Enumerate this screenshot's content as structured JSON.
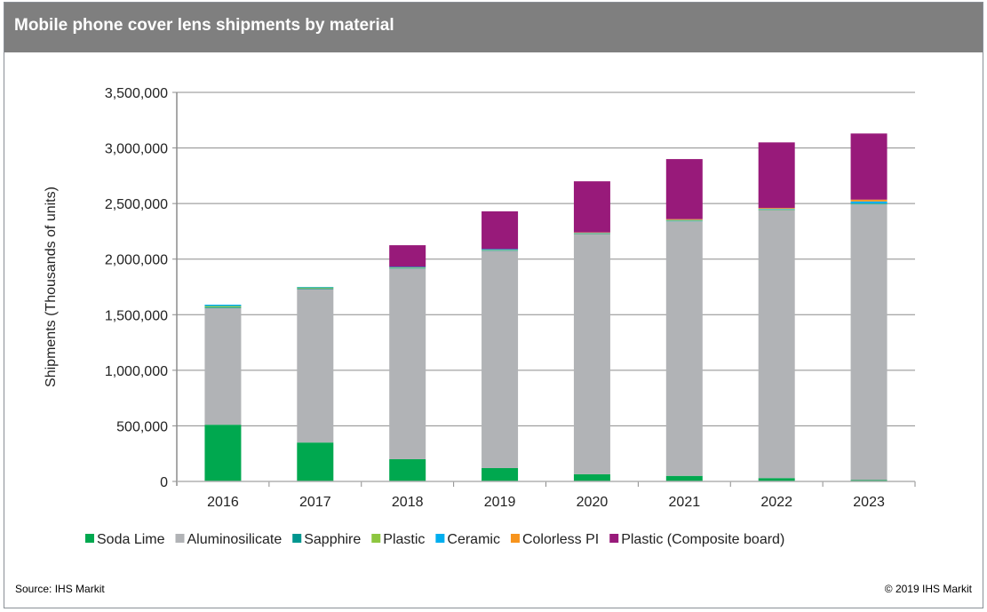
{
  "header": {
    "title": "Mobile phone cover lens shipments by material"
  },
  "footer": {
    "source": "Source: IHS Markit",
    "copyright": "© 2019 IHS Markit"
  },
  "chart_data": {
    "type": "bar",
    "stacked": true,
    "title": "Mobile phone cover lens shipments by material",
    "xlabel": "",
    "ylabel": "Shipments (Thousands of units)",
    "ylim": [
      0,
      3500000
    ],
    "yticks": [
      0,
      500000,
      1000000,
      1500000,
      2000000,
      2500000,
      3000000,
      3500000
    ],
    "ytick_labels": [
      "0",
      "500,000",
      "1,000,000",
      "1,500,000",
      "2,000,000",
      "2,500,000",
      "3,000,000",
      "3,500,000"
    ],
    "grid": true,
    "legend_position": "bottom",
    "categories": [
      "2016",
      "2017",
      "2018",
      "2019",
      "2020",
      "2021",
      "2022",
      "2023"
    ],
    "series": [
      {
        "name": "Soda Lime",
        "color": "#00a84f",
        "values": [
          510000,
          350000,
          200000,
          120000,
          65000,
          50000,
          30000,
          12000
        ]
      },
      {
        "name": "Aluminosilicate",
        "color": "#b1b3b6",
        "values": [
          1050000,
          1380000,
          1715000,
          1955000,
          2160000,
          2290000,
          2410000,
          2480000
        ]
      },
      {
        "name": "Sapphire",
        "color": "#00968f",
        "values": [
          8000,
          7000,
          5000,
          5000,
          4000,
          4000,
          4000,
          4000
        ]
      },
      {
        "name": "Plastic",
        "color": "#8dc63f",
        "values": [
          10000,
          8000,
          5000,
          4000,
          3000,
          3000,
          3000,
          3000
        ]
      },
      {
        "name": "Ceramic",
        "color": "#00aeef",
        "values": [
          12000,
          5000,
          5000,
          6000,
          3000,
          5000,
          5000,
          20000
        ]
      },
      {
        "name": "Colorless PI",
        "color": "#f7941d",
        "values": [
          0,
          0,
          0,
          0,
          5000,
          8000,
          8000,
          16000
        ]
      },
      {
        "name": "Plastic (Composite board)",
        "color": "#981a7a",
        "values": [
          0,
          0,
          195000,
          340000,
          460000,
          540000,
          590000,
          595000
        ]
      }
    ]
  }
}
